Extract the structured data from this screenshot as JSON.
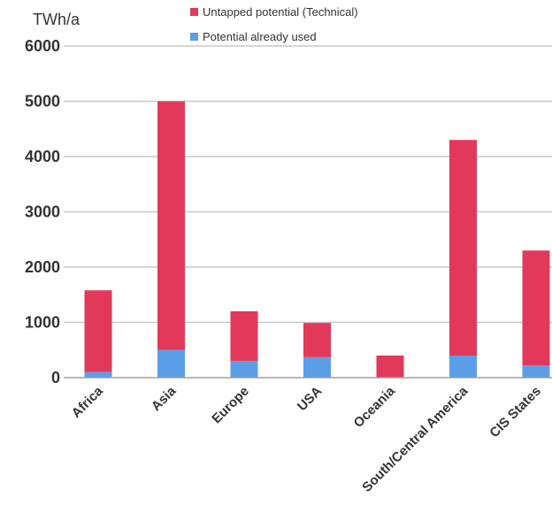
{
  "chart_data": {
    "type": "bar",
    "stacked": true,
    "ylabel": "TWh/a",
    "ylim": [
      0,
      6000
    ],
    "yticks": [
      0,
      1000,
      2000,
      3000,
      4000,
      5000,
      6000
    ],
    "grid": true,
    "legend_position": "top",
    "categories": [
      "Africa",
      "Asia",
      "Europe",
      "USA",
      "Oceania",
      "South/Central America",
      "CIS States"
    ],
    "series": [
      {
        "name": "Potential already used",
        "color": "#5b9ee8",
        "values": [
          100,
          500,
          300,
          370,
          0,
          400,
          220
        ]
      },
      {
        "name": "Untapped potential (Technical)",
        "color": "#e2395a",
        "values": [
          1480,
          4500,
          900,
          620,
          400,
          3900,
          2080
        ]
      }
    ],
    "legend_order": [
      1,
      0
    ]
  }
}
